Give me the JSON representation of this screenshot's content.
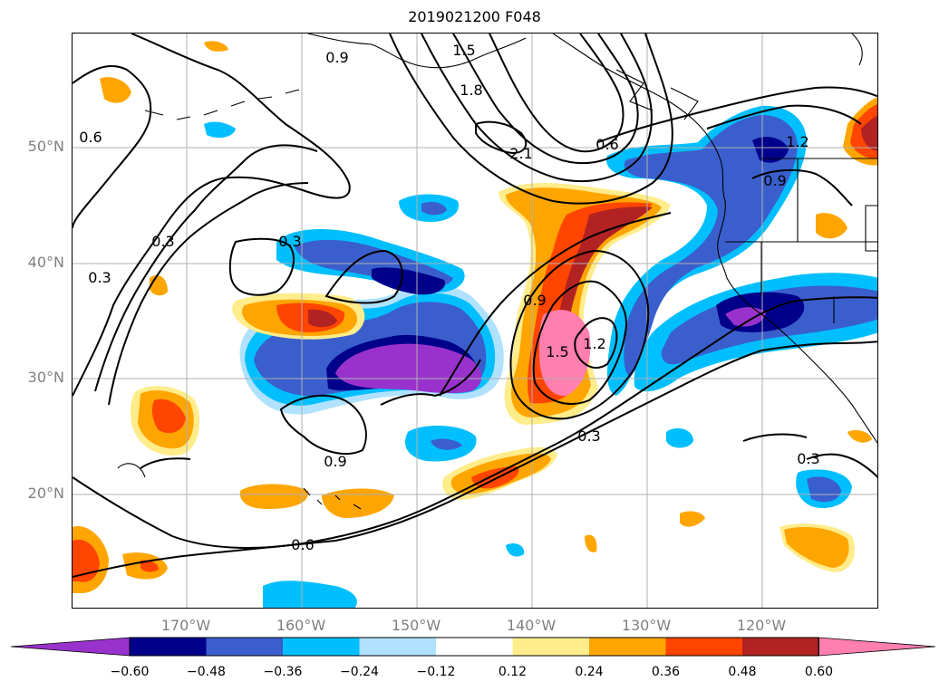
{
  "title": "2019021200 F048",
  "lat_labels": [
    "50°N",
    "40°N",
    "30°N",
    "20°N"
  ],
  "lon_labels": [
    "170°W",
    "160°W",
    "150°W",
    "140°W",
    "130°W",
    "120°W"
  ],
  "contour_labels": [
    "0.9",
    "1.5",
    "1.8",
    "2.1",
    "0.6",
    "0.6",
    "0.9",
    "1.2",
    "0.3",
    "0.3",
    "0.3",
    "0.9",
    "1.5",
    "1.2",
    "0.3",
    "0.3",
    "0.6",
    "0.9"
  ],
  "colorbar": {
    "tick_labels": [
      "−0.60",
      "−0.48",
      "−0.36",
      "−0.24",
      "−0.12",
      "0.12",
      "0.24",
      "0.36",
      "0.48",
      "0.60"
    ],
    "colors": [
      "#9932CC",
      "#00008B",
      "#3A5FCD",
      "#00BFFF",
      "#B0E2FF",
      "#FFFFFF",
      "#FFEC8B",
      "#FFA500",
      "#FF4500",
      "#B22222",
      "#FF7FAF"
    ]
  },
  "fill_colors": {
    "purple": "#9932CC",
    "navy": "#00008B",
    "blue": "#3A5FCD",
    "sky": "#00BFFF",
    "light_sky": "#B0E2FF",
    "light_yellow": "#FFEC8B",
    "orange": "#FFA500",
    "red_orange": "#FF4500",
    "firebrick": "#B22222",
    "pink": "#FF7FAF"
  }
}
